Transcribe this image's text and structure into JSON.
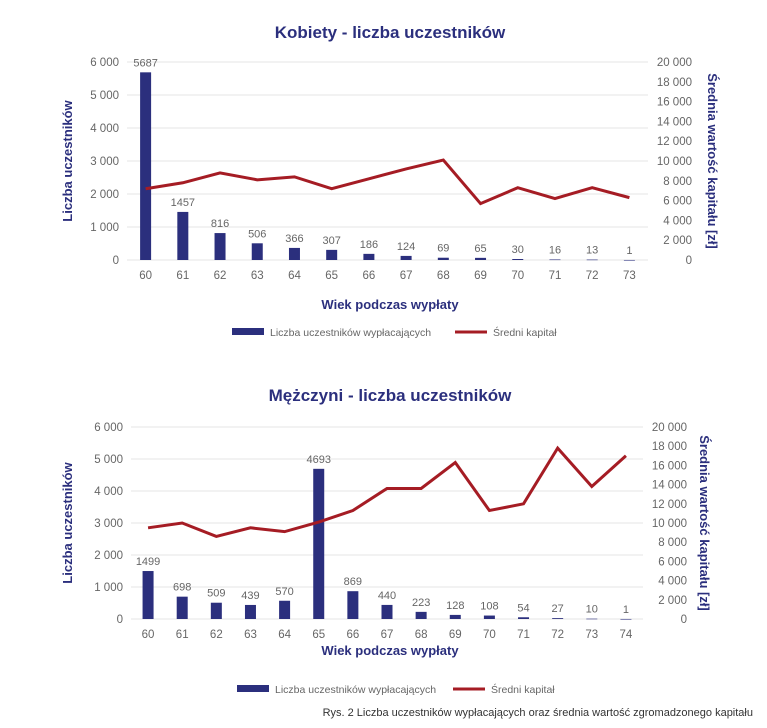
{
  "caption": "Rys. 2 Liczba uczestników wypłacających oraz średnia wartość zgromadzonego kapitału",
  "colors": {
    "bars": "#2b2f7d",
    "line": "#a51c24",
    "title": "#2b2f7d",
    "axis_text": "#666666",
    "grid": "#e4e4e4"
  },
  "chart_data": [
    {
      "type": "bar",
      "title": "Kobiety - liczba uczestników",
      "xlabel": "Wiek podczas wypłaty",
      "ylabel": "Liczba uczestników",
      "y2label": "Średnia wartość kapitału [zł]",
      "categories": [
        "60",
        "61",
        "62",
        "63",
        "64",
        "65",
        "66",
        "67",
        "68",
        "69",
        "70",
        "71",
        "72",
        "73"
      ],
      "ylim": [
        0,
        6000
      ],
      "y2lim": [
        0,
        20000
      ],
      "yticks": [
        "0",
        "1 000",
        "2 000",
        "3 000",
        "4 000",
        "5 000",
        "6 000"
      ],
      "y2ticks": [
        "0",
        "2 000",
        "4 000",
        "6 000",
        "8 000",
        "10 000",
        "12 000",
        "14 000",
        "16 000",
        "18 000",
        "20 000"
      ],
      "legend": {
        "position": "bottom",
        "bar_label": "Liczba uczestników wypłacających",
        "line_label": "Średni kapitał"
      },
      "series": [
        {
          "name": "Liczba uczestników wypłacających",
          "type": "bar",
          "axis": "left",
          "values": [
            5687,
            1457,
            816,
            506,
            366,
            307,
            186,
            124,
            69,
            65,
            30,
            16,
            13,
            1
          ],
          "labels": [
            "5687",
            "1457",
            "816",
            "506",
            "366",
            "307",
            "186",
            "124",
            "69",
            "65",
            "30",
            "16",
            "13",
            "1"
          ]
        },
        {
          "name": "Średni kapitał",
          "type": "line",
          "axis": "right",
          "values": [
            7200,
            7800,
            8800,
            8100,
            8400,
            7200,
            8200,
            9200,
            10100,
            5700,
            7300,
            6200,
            7300,
            6300
          ]
        }
      ]
    },
    {
      "type": "bar",
      "title": "Mężczyni - liczba uczestników",
      "xlabel": "Wiek podczas wypłaty",
      "ylabel": "Liczba uczestników",
      "y2label": "Średnia wartość kapitału [zł]",
      "categories": [
        "60",
        "61",
        "62",
        "63",
        "64",
        "65",
        "66",
        "67",
        "68",
        "69",
        "70",
        "71",
        "72",
        "73",
        "74"
      ],
      "ylim": [
        0,
        6000
      ],
      "y2lim": [
        0,
        20000
      ],
      "yticks": [
        "0",
        "1 000",
        "2 000",
        "3 000",
        "4 000",
        "5 000",
        "6 000"
      ],
      "y2ticks": [
        "0",
        "2 000",
        "4 000",
        "6 000",
        "8 000",
        "10 000",
        "12 000",
        "14 000",
        "16 000",
        "18 000",
        "20 000"
      ],
      "legend": {
        "position": "bottom",
        "bar_label": "Liczba uczestników wypłacających",
        "line_label": "Średni kapitał"
      },
      "series": [
        {
          "name": "Liczba uczestników wypłacających",
          "type": "bar",
          "axis": "left",
          "values": [
            1499,
            698,
            509,
            439,
            570,
            4693,
            869,
            440,
            223,
            128,
            108,
            54,
            27,
            10,
            1
          ],
          "labels": [
            "1499",
            "698",
            "509",
            "439",
            "570",
            "4693",
            "869",
            "440",
            "223",
            "128",
            "108",
            "54",
            "27",
            "10",
            "1"
          ]
        },
        {
          "name": "Średni kapitał",
          "type": "line",
          "axis": "right",
          "values": [
            9500,
            10000,
            8600,
            9500,
            9100,
            10100,
            11300,
            13600,
            13600,
            16300,
            11300,
            12000,
            17800,
            13800,
            17000
          ]
        }
      ]
    }
  ]
}
